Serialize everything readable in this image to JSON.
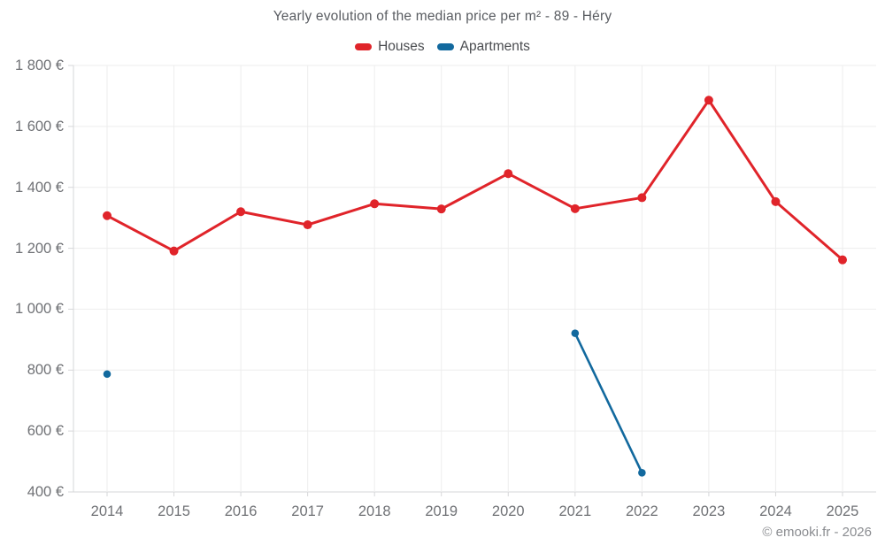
{
  "page": {
    "footer": "© emooki.fr - 2026"
  },
  "chart_data": {
    "type": "line",
    "title": "Yearly evolution of the median price per m² - 89 - Héry",
    "xlabel": "",
    "ylabel": "",
    "currency": "€",
    "legend_position": "top",
    "grid": true,
    "grid_color": "#ededed",
    "axis_color": "#d6d7d9",
    "ylim": [
      400,
      1800
    ],
    "ytick_step": 200,
    "yticks": [
      {
        "value": 1800,
        "label": "1 800 €"
      },
      {
        "value": 1600,
        "label": "1 600 €"
      },
      {
        "value": 1400,
        "label": "1 400 €"
      },
      {
        "value": 1200,
        "label": "1 200 €"
      },
      {
        "value": 1000,
        "label": "1 000 €"
      },
      {
        "value": 800,
        "label": "800 €"
      },
      {
        "value": 600,
        "label": "600 €"
      },
      {
        "value": 400,
        "label": "400 €"
      }
    ],
    "categories": [
      "2014",
      "2015",
      "2016",
      "2017",
      "2018",
      "2019",
      "2020",
      "2021",
      "2022",
      "2023",
      "2024",
      "2025"
    ],
    "series": [
      {
        "name": "Houses",
        "color": "#e0242a",
        "values": [
          1307,
          1191,
          1320,
          1277,
          1346,
          1329,
          1445,
          1330,
          1366,
          1686,
          1353,
          1162
        ]
      },
      {
        "name": "Apartments",
        "color": "#12699e",
        "values": [
          787,
          null,
          null,
          null,
          null,
          null,
          null,
          921,
          463,
          null,
          null,
          null
        ]
      }
    ]
  }
}
